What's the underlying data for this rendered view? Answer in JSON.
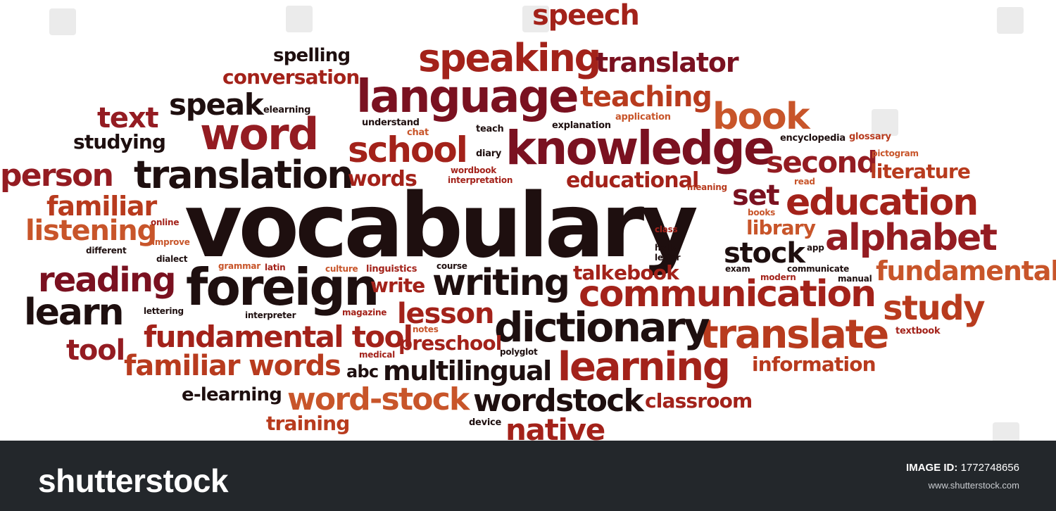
{
  "words": [
    "vocabulary",
    "foreign",
    "knowledge",
    "language",
    "word",
    "translation",
    "speaking",
    "speech",
    "translator",
    "teaching",
    "book",
    "school",
    "second",
    "education",
    "alphabet",
    "fundamental",
    "communication",
    "study",
    "translate",
    "dictionary",
    "learning",
    "writing",
    "reading",
    "learn",
    "person",
    "text",
    "speak",
    "spelling",
    "conversation",
    "studying",
    "familiar",
    "listening",
    "tool",
    "fundamental tool",
    "familiar words",
    "multilingual",
    "wordstock",
    "word-stock",
    "native",
    "classroom",
    "training",
    "e-learning",
    "abc",
    "device",
    "preschool",
    "lesson",
    "write",
    "information",
    "stock",
    "library",
    "set",
    "educational",
    "literature",
    "words",
    "talk",
    "ebook",
    "elearning",
    "understand",
    "chat",
    "teach",
    "explanation",
    "application",
    "diary",
    "wordbook",
    "interpretation",
    "meaning",
    "read",
    "encyclopedia",
    "glossary",
    "pictogram",
    "books",
    "class",
    "hello",
    "letter",
    "app",
    "exam",
    "modern",
    "communicate",
    "manual",
    "course",
    "culture",
    "linguistics",
    "grammar",
    "latin",
    "dialect",
    "different",
    "online",
    "improve",
    "lettering",
    "interpreter",
    "magazine",
    "notes",
    "medical",
    "polyglot",
    "textbook"
  ],
  "footer": {
    "logo": "shutterstock",
    "image_id_label": "IMAGE ID:",
    "image_id": "1772748656",
    "site": "www.shutterstock.com"
  },
  "colors": {
    "footer_bg": "#23272b",
    "word_dark": "#1e0f0f",
    "word_red": "#a3221a",
    "word_maroon": "#7a1120",
    "word_orange": "#c8552a"
  }
}
